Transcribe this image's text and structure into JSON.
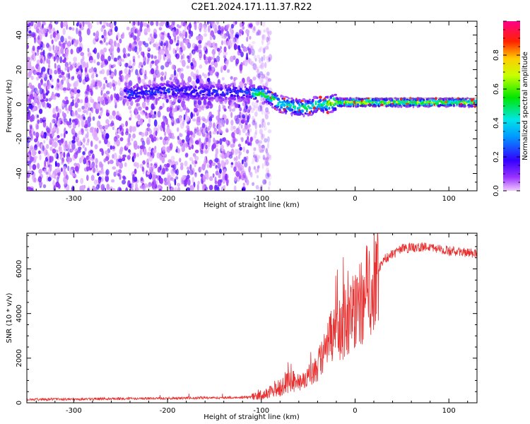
{
  "chart_data": [
    {
      "type": "heatmap",
      "title": "C2E1.2024.171.11.37.R22",
      "xlabel": "Height of straight line (km)",
      "ylabel": "Frequency (Hz)",
      "xlim": [
        -350,
        130
      ],
      "ylim": [
        -50,
        48
      ],
      "x_ticks": [
        "-300",
        "-200",
        "-100",
        "0",
        "100"
      ],
      "y_ticks": [
        "-40",
        "-20",
        "0",
        "20",
        "40"
      ],
      "colorbar": {
        "label": "Normalized spectral amplitude",
        "range": [
          0,
          1
        ],
        "ticks": [
          "0.0",
          "0.2",
          "0.4",
          "0.6",
          "0.8"
        ],
        "colormap": "rainbow (violet-blue-cyan-green-yellow-red-magenta)"
      },
      "noise_region_x": [
        -350,
        -100
      ],
      "ridge": {
        "x": [
          -240,
          -200,
          -160,
          -120,
          -100,
          -90,
          -80,
          -70,
          -60,
          -50,
          -40,
          -30,
          -20,
          -10,
          0,
          20,
          50,
          80,
          110,
          130
        ],
        "y": [
          6,
          8,
          7,
          7,
          6,
          4,
          0,
          -1,
          -2,
          -2,
          0,
          0,
          1,
          1,
          1,
          1,
          1,
          1,
          1,
          1
        ]
      }
    },
    {
      "type": "line",
      "xlabel": "Height of straight line (km)",
      "ylabel": "SNR (10 * v/v)",
      "xlim": [
        -350,
        130
      ],
      "ylim": [
        0,
        7600
      ],
      "x_ticks": [
        "-300",
        "-200",
        "-100",
        "0",
        "100"
      ],
      "y_ticks": [
        "0",
        "2000",
        "4000",
        "6000"
      ],
      "line_color": "#e83030",
      "envelope": {
        "x": [
          -350,
          -200,
          -110,
          -95,
          -80,
          -70,
          -60,
          -50,
          -40,
          -30,
          -20,
          -10,
          0,
          10,
          20,
          30,
          50,
          80,
          100,
          130
        ],
        "y": [
          150,
          200,
          250,
          400,
          700,
          1000,
          900,
          1200,
          1600,
          2500,
          3300,
          3600,
          4200,
          4600,
          5600,
          6400,
          6900,
          7000,
          6800,
          6700
        ]
      }
    }
  ]
}
